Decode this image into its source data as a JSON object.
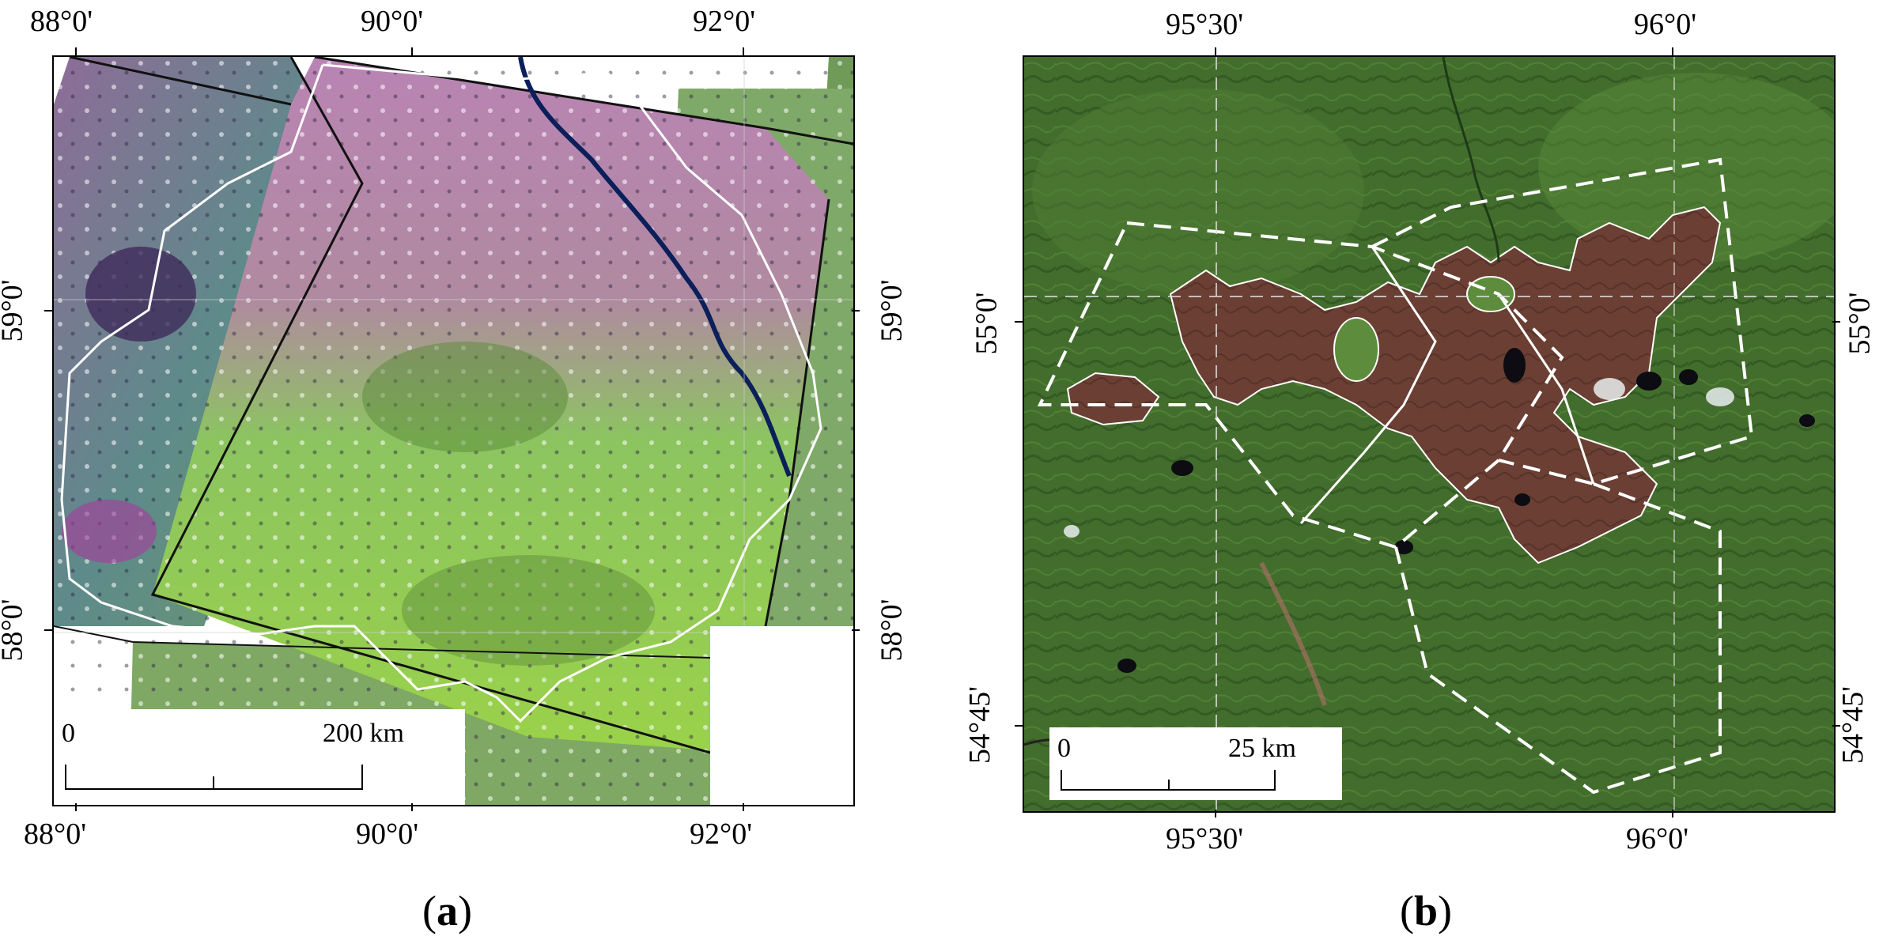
{
  "panel_a": {
    "caption_letter": "a",
    "top_lon_labels": [
      "88°0'",
      "90°0'",
      "92°0'"
    ],
    "bottom_lon_labels": [
      "88°0'",
      "90°0'",
      "92°0'"
    ],
    "left_lat_labels": [
      "59°0'",
      "58°0'"
    ],
    "right_lat_labels": [
      "59°0'",
      "58°0'"
    ],
    "scale_zero": "0",
    "scale_end": "200 km"
  },
  "panel_b": {
    "caption_letter": "b",
    "top_lon_labels": [
      "95°30'",
      "96°0'"
    ],
    "bottom_lon_labels": [
      "95°30'",
      "96°0'"
    ],
    "left_lat_labels": [
      "55°0'",
      "54°45'"
    ],
    "right_lat_labels": [
      "55°0'",
      "54°45'"
    ],
    "scale_zero": "0",
    "scale_end": "25 km"
  },
  "colors": {
    "vegetation_green": "#9ad24a",
    "burned_brown": "#6b3f33",
    "forest_green": "#3f6a2a",
    "magenta_scene": "#b070a8",
    "river_blue": "#0b1f5a",
    "boundary_white": "#ffffff"
  }
}
